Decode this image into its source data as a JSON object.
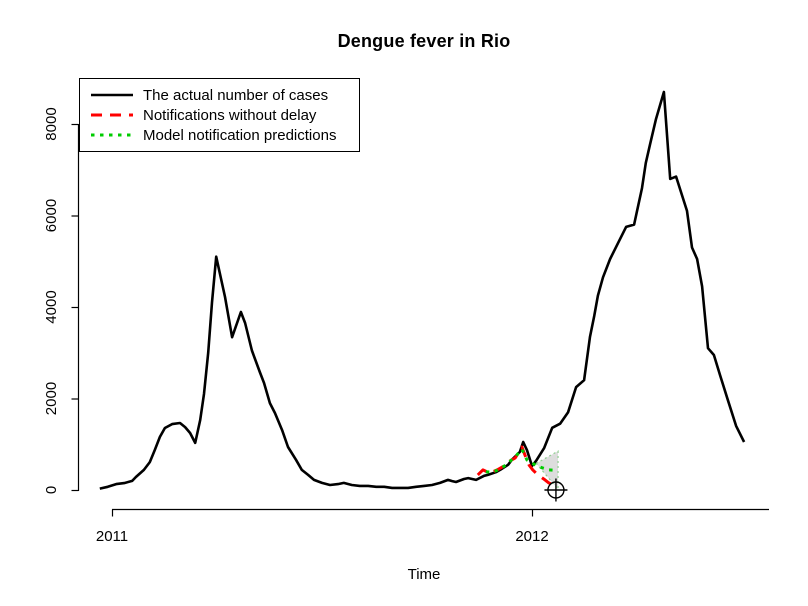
{
  "chart_data": {
    "type": "line",
    "title": "Dengue fever in Rio",
    "xlabel": "Time",
    "ylabel": "",
    "grid": false,
    "legend_position": "topleft",
    "x_ticks": [
      {
        "value": 2011,
        "label": "2011"
      },
      {
        "value": 2012,
        "label": "2012"
      }
    ],
    "y_ticks": [
      {
        "value": 0,
        "label": "0"
      },
      {
        "value": 2000,
        "label": "2000"
      },
      {
        "value": 4000,
        "label": "4000"
      },
      {
        "value": 6000,
        "label": "6000"
      },
      {
        "value": 8000,
        "label": "8000"
      }
    ],
    "x_range": [
      2010.95,
      2012.57
    ],
    "y_range": [
      0,
      8800
    ],
    "series": [
      {
        "id": "actual-cases",
        "label": "The actual number of cases",
        "color": "#000000",
        "style": "solid",
        "points": [
          [
            2010.971,
            30
          ],
          [
            2010.99,
            70
          ],
          [
            2011.01,
            130
          ],
          [
            2011.029,
            150
          ],
          [
            2011.048,
            200
          ],
          [
            2011.057,
            285
          ],
          [
            2011.076,
            440
          ],
          [
            2011.09,
            610
          ],
          [
            2011.102,
            875
          ],
          [
            2011.114,
            1160
          ],
          [
            2011.126,
            1355
          ],
          [
            2011.143,
            1440
          ],
          [
            2011.162,
            1465
          ],
          [
            2011.174,
            1375
          ],
          [
            2011.186,
            1245
          ],
          [
            2011.198,
            1030
          ],
          [
            2011.21,
            1530
          ],
          [
            2011.219,
            2100
          ],
          [
            2011.229,
            3000
          ],
          [
            2011.238,
            4100
          ],
          [
            2011.248,
            5100
          ],
          [
            2011.269,
            4220
          ],
          [
            2011.286,
            3340
          ],
          [
            2011.307,
            3890
          ],
          [
            2011.317,
            3650
          ],
          [
            2011.333,
            3050
          ],
          [
            2011.352,
            2580
          ],
          [
            2011.362,
            2340
          ],
          [
            2011.376,
            1900
          ],
          [
            2011.388,
            1680
          ],
          [
            2011.405,
            1310
          ],
          [
            2011.419,
            940
          ],
          [
            2011.438,
            660
          ],
          [
            2011.452,
            440
          ],
          [
            2011.467,
            330
          ],
          [
            2011.481,
            220
          ],
          [
            2011.5,
            155
          ],
          [
            2011.519,
            110
          ],
          [
            2011.538,
            130
          ],
          [
            2011.552,
            155
          ],
          [
            2011.571,
            110
          ],
          [
            2011.59,
            90
          ],
          [
            2011.61,
            90
          ],
          [
            2011.629,
            70
          ],
          [
            2011.648,
            70
          ],
          [
            2011.667,
            45
          ],
          [
            2011.686,
            45
          ],
          [
            2011.705,
            45
          ],
          [
            2011.724,
            70
          ],
          [
            2011.743,
            90
          ],
          [
            2011.762,
            110
          ],
          [
            2011.781,
            155
          ],
          [
            2011.8,
            220
          ],
          [
            2011.81,
            195
          ],
          [
            2011.819,
            175
          ],
          [
            2011.838,
            240
          ],
          [
            2011.848,
            260
          ],
          [
            2011.867,
            220
          ],
          [
            2011.886,
            310
          ],
          [
            2011.895,
            330
          ],
          [
            2011.914,
            390
          ],
          [
            2011.924,
            440
          ],
          [
            2011.943,
            550
          ],
          [
            2011.952,
            660
          ],
          [
            2011.971,
            830
          ],
          [
            2011.979,
            1050
          ],
          [
            2011.988,
            870
          ],
          [
            2012.0,
            525
          ],
          [
            2012.01,
            640
          ],
          [
            2012.029,
            920
          ],
          [
            2012.048,
            1360
          ],
          [
            2012.067,
            1450
          ],
          [
            2012.086,
            1700
          ],
          [
            2012.105,
            2250
          ],
          [
            2012.124,
            2400
          ],
          [
            2012.138,
            3350
          ],
          [
            2012.148,
            3800
          ],
          [
            2012.157,
            4250
          ],
          [
            2012.169,
            4650
          ],
          [
            2012.186,
            5050
          ],
          [
            2012.205,
            5400
          ],
          [
            2012.224,
            5750
          ],
          [
            2012.243,
            5800
          ],
          [
            2012.262,
            6600
          ],
          [
            2012.271,
            7150
          ],
          [
            2012.281,
            7550
          ],
          [
            2012.295,
            8100
          ],
          [
            2012.314,
            8700
          ],
          [
            2012.329,
            6800
          ],
          [
            2012.343,
            6850
          ],
          [
            2012.357,
            6450
          ],
          [
            2012.369,
            6100
          ],
          [
            2012.381,
            5300
          ],
          [
            2012.393,
            5050
          ],
          [
            2012.405,
            4450
          ],
          [
            2012.419,
            3100
          ],
          [
            2012.433,
            2950
          ],
          [
            2012.448,
            2500
          ],
          [
            2012.467,
            1950
          ],
          [
            2012.486,
            1400
          ],
          [
            2012.505,
            1050
          ]
        ]
      },
      {
        "id": "notifications-no-delay",
        "label": "Notifications without delay",
        "color": "#ff0000",
        "style": "dashed",
        "points": [
          [
            2011.871,
            330
          ],
          [
            2011.883,
            440
          ],
          [
            2011.9,
            370
          ],
          [
            2011.917,
            440
          ],
          [
            2011.929,
            500
          ],
          [
            2011.943,
            610
          ],
          [
            2011.96,
            700
          ],
          [
            2011.969,
            830
          ],
          [
            2011.976,
            940
          ],
          [
            2011.986,
            700
          ],
          [
            2011.993,
            545
          ],
          [
            2012.002,
            440
          ],
          [
            2012.012,
            350
          ],
          [
            2012.021,
            285
          ],
          [
            2012.031,
            220
          ],
          [
            2012.04,
            155
          ],
          [
            2012.05,
            110
          ],
          [
            2012.057,
            65
          ]
        ]
      },
      {
        "id": "model-predictions",
        "label": "Model notification predictions",
        "color": "#00cc00",
        "style": "dotted",
        "points": [
          [
            2011.89,
            400
          ],
          [
            2011.905,
            390
          ],
          [
            2011.924,
            455
          ],
          [
            2011.943,
            590
          ],
          [
            2011.962,
            745
          ],
          [
            2011.976,
            895
          ],
          [
            2011.988,
            655
          ],
          [
            2012.0,
            590
          ],
          [
            2012.012,
            525
          ],
          [
            2012.026,
            480
          ],
          [
            2012.04,
            440
          ],
          [
            2012.05,
            435
          ],
          [
            2012.06,
            460
          ]
        ]
      }
    ],
    "band": {
      "x": [
        2012.01,
        2012.062
      ],
      "upper": [
        580,
        850
      ],
      "lower": [
        580,
        20
      ],
      "fill": "#d4d4d4",
      "border": "#8fcf8f"
    },
    "marker": {
      "x": 2012.057,
      "y": 0,
      "symbol": "circle-plus",
      "color": "#000000"
    }
  }
}
